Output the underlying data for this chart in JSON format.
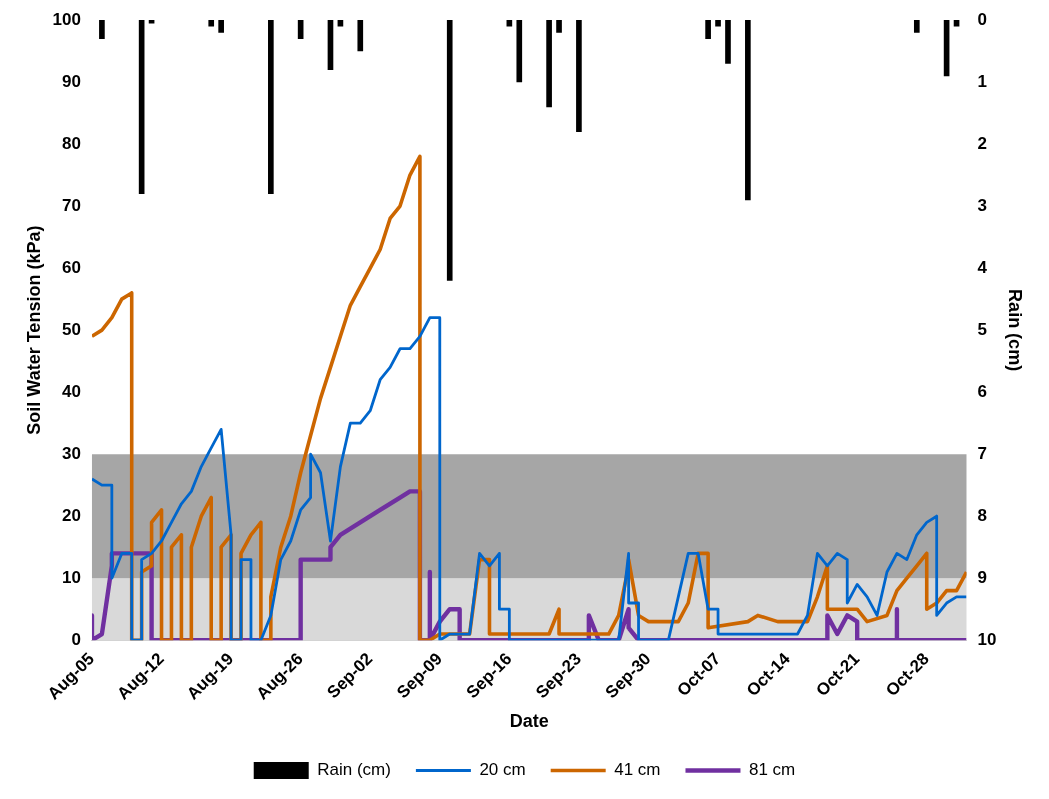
{
  "chart_data": {
    "type": "line",
    "xlabel": "Date",
    "ylabel": "Soil Water Tension (kPa)",
    "y2label": "Rain (cm)",
    "xlim": [
      "--08-05",
      "--11-01"
    ],
    "xticks": [
      {
        "value": "--08-05",
        "label": "Aug-05"
      },
      {
        "value": "--08-12",
        "label": "Aug-12"
      },
      {
        "value": "--08-19",
        "label": "Aug-19"
      },
      {
        "value": "--08-26",
        "label": "Aug-26"
      },
      {
        "value": "--09-02",
        "label": "Sep-02"
      },
      {
        "value": "--09-09",
        "label": "Sep-09"
      },
      {
        "value": "--09-16",
        "label": "Sep-16"
      },
      {
        "value": "--09-23",
        "label": "Sep-23"
      },
      {
        "value": "--09-30",
        "label": "Sep-30"
      },
      {
        "value": "--10-07",
        "label": "Oct-07"
      },
      {
        "value": "--10-14",
        "label": "Oct-14"
      },
      {
        "value": "--10-21",
        "label": "Oct-21"
      },
      {
        "value": "--10-28",
        "label": "Oct-28"
      }
    ],
    "ylim": [
      0,
      100
    ],
    "yticks": [
      0,
      10,
      20,
      30,
      40,
      50,
      60,
      70,
      80,
      90,
      100
    ],
    "y2lim": [
      10,
      0
    ],
    "y2ticks": [
      0,
      1,
      2,
      3,
      4,
      5,
      6,
      7,
      8,
      9,
      10
    ],
    "legend": "bottom",
    "marker": "none",
    "line_style": "solid",
    "bands": [
      {
        "axis": "y",
        "from": 0,
        "to": 10,
        "color": "#d9d9d9"
      },
      {
        "axis": "y",
        "from": 10,
        "to": 30,
        "color": "#a6a6a6"
      }
    ],
    "series": [
      {
        "name": "Rain (cm)",
        "type": "bar",
        "axis": "y2",
        "color": "#000000",
        "x": [
          "--08-06",
          "--08-10",
          "--08-11",
          "--08-17",
          "--08-18",
          "--08-23",
          "--08-26",
          "--08-29",
          "--08-30",
          "--09-01",
          "--09-10",
          "--09-16",
          "--09-17",
          "--09-20",
          "--09-21",
          "--09-23",
          "--10-06",
          "--10-07",
          "--10-08",
          "--10-10",
          "--10-27",
          "--10-30",
          "--10-31"
        ],
        "values": [
          0.3,
          2.8,
          0.05,
          0.1,
          0.2,
          2.8,
          0.3,
          0.8,
          0.1,
          0.5,
          4.2,
          0.1,
          1.0,
          1.4,
          0.2,
          1.8,
          0.3,
          0.1,
          0.7,
          2.9,
          0.2,
          0.9,
          0.1
        ]
      },
      {
        "name": "20 cm",
        "color": "#0066cc",
        "x": [
          "--08-05",
          "--08-06",
          "--08-07",
          "--08-07",
          "--08-08",
          "--08-09",
          "--08-09",
          "--08-10",
          "--08-10",
          "--08-11",
          "--08-12",
          "--08-13",
          "--08-14",
          "--08-15",
          "--08-16",
          "--08-17",
          "--08-18",
          "--08-19",
          "--08-19",
          "--08-20",
          "--08-20",
          "--08-21",
          "--08-21",
          "--08-22",
          "--08-23",
          "--08-24",
          "--08-25",
          "--08-26",
          "--08-27",
          "--08-27",
          "--08-28",
          "--08-29",
          "--08-30",
          "--08-31",
          "--09-01",
          "--09-02",
          "--09-03",
          "--09-04",
          "--09-05",
          "--09-06",
          "--09-07",
          "--09-08",
          "--09-09",
          "--09-09",
          "--09-10",
          "--09-12",
          "--09-13",
          "--09-14",
          "--09-15",
          "--09-15",
          "--09-16",
          "--09-16",
          "--09-27",
          "--09-28",
          "--09-28",
          "--09-29",
          "--09-29",
          "--10-02",
          "--10-03",
          "--10-04",
          "--10-05",
          "--10-06",
          "--10-07",
          "--10-07",
          "--10-15",
          "--10-16",
          "--10-17",
          "--10-18",
          "--10-19",
          "--10-20",
          "--10-20",
          "--10-21",
          "--10-22",
          "--10-23",
          "--10-24",
          "--10-25",
          "--10-26",
          "--10-27",
          "--10-28",
          "--10-29",
          "--10-29",
          "--10-30",
          "--10-31",
          "--11-01"
        ],
        "values": [
          26,
          25,
          25,
          10,
          14,
          14,
          0,
          0,
          13,
          14,
          16,
          19,
          22,
          24,
          28,
          31,
          34,
          17,
          0,
          0,
          13,
          13,
          0,
          0,
          4,
          13,
          16,
          21,
          23,
          30,
          27,
          16,
          28,
          35,
          35,
          37,
          42,
          44,
          47,
          47,
          49,
          52,
          52,
          0,
          1,
          1,
          14,
          12,
          14,
          5,
          5,
          0,
          0,
          14,
          6,
          6,
          0,
          0,
          7,
          14,
          14,
          5,
          5,
          1,
          1,
          4,
          14,
          12,
          14,
          13,
          6,
          9,
          7,
          4,
          11,
          14,
          13,
          17,
          19,
          20,
          4,
          6,
          7,
          7
        ]
      },
      {
        "name": "41 cm",
        "color": "#cc6600",
        "x": [
          "--08-05",
          "--08-06",
          "--08-07",
          "--08-08",
          "--08-09",
          "--08-09",
          "--08-10",
          "--08-10",
          "--08-11",
          "--08-11",
          "--08-12",
          "--08-12",
          "--08-13",
          "--08-13",
          "--08-14",
          "--08-14",
          "--08-15",
          "--08-15",
          "--08-16",
          "--08-17",
          "--08-17",
          "--08-18",
          "--08-18",
          "--08-19",
          "--08-19",
          "--08-20",
          "--08-20",
          "--08-21",
          "--08-22",
          "--08-22",
          "--08-23",
          "--08-23",
          "--08-24",
          "--08-25",
          "--08-26",
          "--08-27",
          "--08-28",
          "--08-29",
          "--08-30",
          "--08-31",
          "--09-01",
          "--09-02",
          "--09-03",
          "--09-04",
          "--09-05",
          "--09-06",
          "--09-07",
          "--09-07",
          "--09-08",
          "--09-09",
          "--09-12",
          "--09-13",
          "--09-14",
          "--09-14",
          "--09-20",
          "--09-21",
          "--09-21",
          "--09-26",
          "--09-27",
          "--09-28",
          "--09-28",
          "--09-29",
          "--09-30",
          "--10-03",
          "--10-04",
          "--10-05",
          "--10-06",
          "--10-06",
          "--10-10",
          "--10-11",
          "--10-13",
          "--10-16",
          "--10-17",
          "--10-18",
          "--10-18",
          "--10-21",
          "--10-22",
          "--10-24",
          "--10-25",
          "--10-26",
          "--10-27",
          "--10-28",
          "--10-28",
          "--10-29",
          "--10-30",
          "--10-31",
          "--11-01"
        ],
        "values": [
          49,
          50,
          52,
          55,
          56,
          0,
          0,
          11,
          12,
          19,
          21,
          0,
          0,
          15,
          17,
          0,
          0,
          15,
          20,
          23,
          0,
          0,
          15,
          17,
          0,
          0,
          14,
          17,
          19,
          0,
          0,
          7,
          15,
          20,
          27,
          33,
          39,
          44,
          49,
          54,
          57,
          60,
          63,
          68,
          70,
          75,
          78,
          0,
          0,
          1,
          1,
          13,
          13,
          1,
          1,
          5,
          1,
          1,
          4,
          12,
          13,
          4,
          3,
          3,
          6,
          14,
          14,
          2,
          3,
          4,
          3,
          3,
          7,
          12,
          5,
          5,
          3,
          4,
          8,
          10,
          12,
          14,
          5,
          6,
          8,
          8,
          11
        ]
      },
      {
        "name": "81 cm",
        "color": "#7030a0",
        "x": [
          "--08-05",
          "--08-05",
          "--08-06",
          "--08-07",
          "--08-07",
          "--08-11",
          "--08-11",
          "--08-26",
          "--08-26",
          "--08-29",
          "--08-29",
          "--08-30",
          "--09-01",
          "--09-03",
          "--09-05",
          "--09-06",
          "--09-07",
          "--09-07",
          "--09-08",
          "--09-08",
          "--09-08",
          "--09-09",
          "--09-10",
          "--09-11",
          "--09-11",
          "--09-24",
          "--09-24",
          "--09-25",
          "--09-27",
          "--09-28",
          "--09-28",
          "--09-29",
          "--10-18",
          "--10-18",
          "--10-19",
          "--10-20",
          "--10-21",
          "--10-21",
          "--10-25",
          "--10-25",
          "--10-25",
          "--11-01"
        ],
        "values": [
          4,
          0,
          1,
          12,
          14,
          14,
          0,
          0,
          13,
          13,
          15,
          17,
          19,
          21,
          23,
          24,
          24,
          0,
          0,
          11,
          0,
          3,
          5,
          5,
          0,
          0,
          4,
          0,
          0,
          5,
          2,
          0,
          0,
          4,
          1,
          4,
          3,
          0,
          0,
          5,
          0,
          0
        ]
      }
    ]
  }
}
